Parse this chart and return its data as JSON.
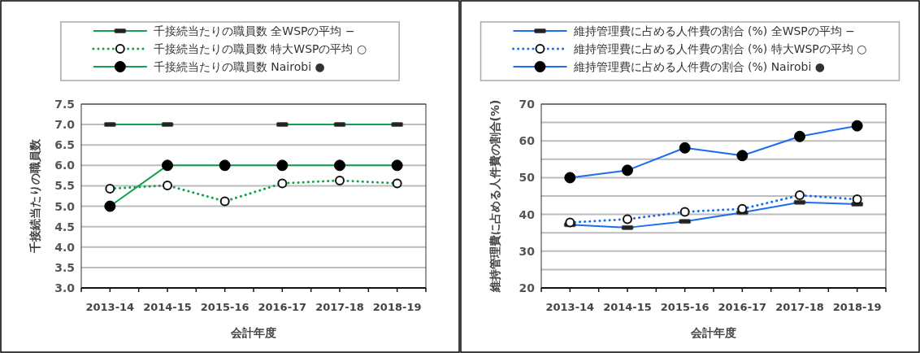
{
  "chart_data": [
    {
      "type": "line",
      "categories": [
        "2013-14",
        "2014-15",
        "2015-16",
        "2016-17",
        "2017-18",
        "2018-19"
      ],
      "xlabel": "会計年度",
      "ylabel": "千接続当たりの職員数",
      "ylim": [
        3.0,
        7.5
      ],
      "yticks": [
        {
          "value": 3.0,
          "label": "3.0"
        },
        {
          "value": 3.5,
          "label": "3.5"
        },
        {
          "value": 4.0,
          "label": "4.0"
        },
        {
          "value": 4.5,
          "label": "4.5"
        },
        {
          "value": 5.0,
          "label": "5.0"
        },
        {
          "value": 5.5,
          "label": "5.5"
        },
        {
          "value": 6.0,
          "label": "6.0"
        },
        {
          "value": 6.5,
          "label": "6.5"
        },
        {
          "value": 7.0,
          "label": "7.0"
        },
        {
          "value": 7.5,
          "label": "7.5"
        }
      ],
      "grid": "y",
      "legend": "top",
      "series": [
        {
          "name": "千接続当たりの職員数 全WSPの平均 −",
          "color": "#12a14a",
          "marker": "square",
          "line_style": "solid",
          "values": [
            7.0,
            7.0,
            null,
            7.0,
            7.0,
            7.0
          ]
        },
        {
          "name": "千接続当たりの職員数 特大WSPの平均 ○",
          "color": "#12a14a",
          "marker": "circle_open",
          "line_style": "dotted",
          "values": [
            5.43,
            5.51,
            5.12,
            5.56,
            5.63,
            5.56
          ]
        },
        {
          "name": "千接続当たりの職員数 Nairobi ●",
          "color": "#12a14a",
          "marker": "circle",
          "line_style": "solid",
          "values": [
            5.0,
            6.0,
            6.0,
            6.0,
            6.0,
            6.0
          ]
        }
      ]
    },
    {
      "type": "line",
      "categories": [
        "2013-14",
        "2014-15",
        "2015-16",
        "2016-17",
        "2017-18",
        "2018-19"
      ],
      "xlabel": "会計年度",
      "ylabel": "維持管理費に占める人件費の割合(%)",
      "ylim": [
        20,
        70
      ],
      "yticks": [
        20,
        {
          "value": 25,
          "label": null
        },
        30,
        {
          "value": 35,
          "label": null
        },
        40,
        {
          "value": 45,
          "label": null
        },
        50,
        {
          "value": 55,
          "label": null
        },
        60,
        {
          "value": 65,
          "label": null
        },
        70
      ],
      "grid": "y",
      "legend": "top",
      "series": [
        {
          "name": "維持管理費に占める人件費の割合 (%) 全WSPの平均 −",
          "color": "#1a6cf0",
          "marker": "square",
          "line_style": "solid",
          "values": [
            37.2,
            36.4,
            38.1,
            40.5,
            43.3,
            42.8
          ]
        },
        {
          "name": "維持管理費に占める人件費の割合 (%) 特大WSPの平均 ○",
          "color": "#1a6cf0",
          "marker": "circle_open",
          "line_style": "dotted",
          "values": [
            37.8,
            38.7,
            40.7,
            41.5,
            45.2,
            44.1
          ]
        },
        {
          "name": "維持管理費に占める人件費の割合 (%) Nairobi ●",
          "color": "#1a6cf0",
          "marker": "circle",
          "line_style": "solid",
          "values": [
            50,
            52,
            58.1,
            56,
            61.2,
            64.1
          ]
        }
      ]
    }
  ]
}
